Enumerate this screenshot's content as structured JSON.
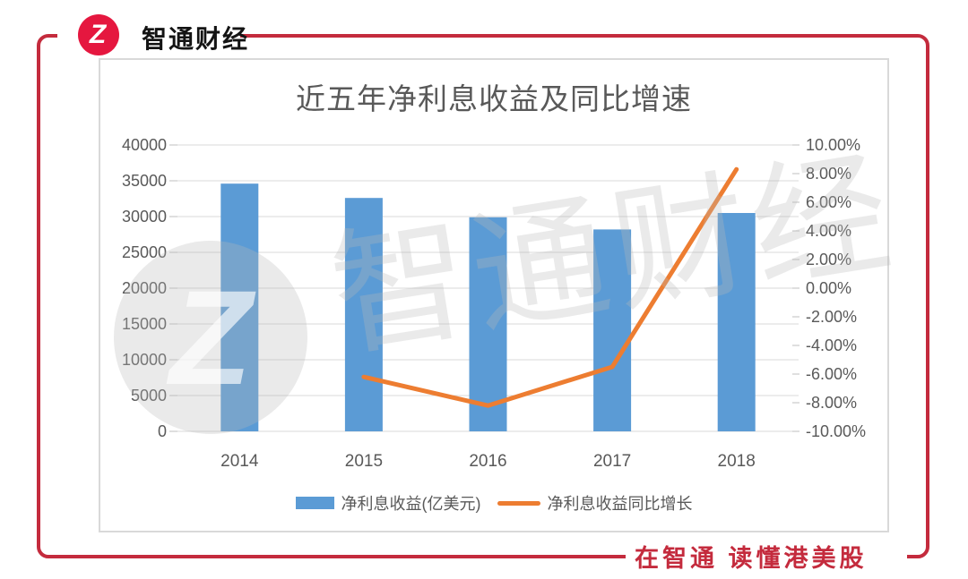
{
  "brand": {
    "logo_mark": "Z",
    "name": "智通财经"
  },
  "watermark": {
    "mark": "Z",
    "text": "智通财经"
  },
  "footer": {
    "slogan": "在智通 读懂港美股"
  },
  "colors": {
    "frame_red": "#C42B3D",
    "logo_red": "#E5173F",
    "bar_blue": "#5B9BD5",
    "line_orange": "#ED7D31",
    "axis_text": "#595959",
    "gridline": "#D9D9D9",
    "tick": "#BFBFBF"
  },
  "chart_data": {
    "type": "bar",
    "title": "近五年净利息收益及同比增速",
    "categories": [
      "2014",
      "2015",
      "2016",
      "2017",
      "2018"
    ],
    "series": [
      {
        "name": "净利息收益(亿美元)",
        "type": "bar",
        "axis": "left",
        "color": "#5B9BD5",
        "values": [
          34600,
          32600,
          29900,
          28200,
          30500
        ]
      },
      {
        "name": "净利息收益同比增长",
        "type": "line",
        "axis": "right",
        "color": "#ED7D31",
        "values": [
          null,
          -6.2,
          -8.2,
          -5.5,
          8.3
        ]
      }
    ],
    "left_axis": {
      "min": 0,
      "max": 40000,
      "step": 5000
    },
    "right_axis": {
      "min": -10,
      "max": 10,
      "step": 2,
      "unit": "%",
      "decimals": 2
    },
    "grid": true,
    "legend_position": "bottom"
  }
}
